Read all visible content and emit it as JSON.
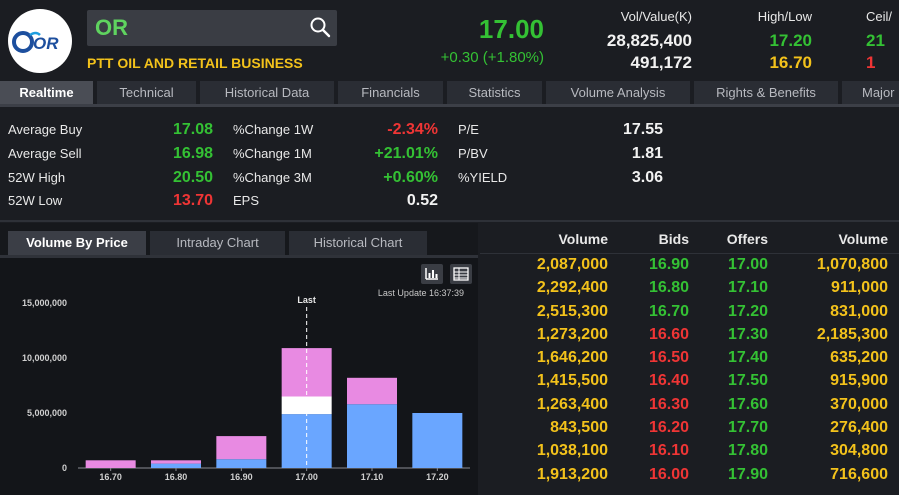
{
  "header": {
    "logo_text": "OR",
    "search_value": "OR",
    "company_name": "PTT OIL AND RETAIL BUSINESS",
    "last_price": "17.00",
    "price_change": "+0.30 (+1.80%)",
    "vol_value": {
      "label": "Vol/Value(K)",
      "v1": "28,825,400",
      "v2": "491,172"
    },
    "high_low": {
      "label": "High/Low",
      "v1": "17.20",
      "v2": "16.70"
    },
    "ceil_floor": {
      "label": "Ceil/",
      "v1": "21",
      "v2": "1"
    }
  },
  "tabs": [
    {
      "label": "Realtime"
    },
    {
      "label": "Technical"
    },
    {
      "label": "Historical Data"
    },
    {
      "label": "Financials"
    },
    {
      "label": "Statistics"
    },
    {
      "label": "Volume Analysis"
    },
    {
      "label": "Rights & Benefits"
    },
    {
      "label": "Major"
    }
  ],
  "stats": {
    "average_buy": {
      "label": "Average Buy",
      "value": "17.08"
    },
    "average_sell": {
      "label": "Average Sell",
      "value": "16.98"
    },
    "high_52w": {
      "label": "52W High",
      "value": "20.50"
    },
    "low_52w": {
      "label": "52W Low",
      "value": "13.70"
    },
    "change_1w": {
      "label": "%Change 1W",
      "value": "-2.34%"
    },
    "change_1m": {
      "label": "%Change 1M",
      "value": "+21.01%"
    },
    "change_3m": {
      "label": "%Change 3M",
      "value": "+0.60%"
    },
    "eps": {
      "label": "EPS",
      "value": "0.52"
    },
    "pe": {
      "label": "P/E",
      "value": "17.55"
    },
    "pbv": {
      "label": "P/BV",
      "value": "1.81"
    },
    "yield": {
      "label": "%YIELD",
      "value": "3.06"
    }
  },
  "chart_tabs": [
    {
      "label": "Volume By Price"
    },
    {
      "label": "Intraday Chart"
    },
    {
      "label": "Historical Chart"
    }
  ],
  "chart_tools": {
    "bar_icon": "bar-chart-icon",
    "table_icon": "table-icon"
  },
  "last_update": "Last Update 16:37:39",
  "chart_data": {
    "type": "bar",
    "stacked": true,
    "categories": [
      "16.70",
      "16.80",
      "16.90",
      "17.00",
      "17.10",
      "17.20"
    ],
    "series": [
      {
        "name": "",
        "color": "#6aa6ff",
        "values": [
          0,
          400000,
          800000,
          4900000,
          5800000,
          5000000
        ]
      },
      {
        "name": "",
        "color": "#ffffff",
        "values": [
          0,
          0,
          0,
          1600000,
          0,
          0
        ]
      },
      {
        "name": "",
        "color": "#e88ae2",
        "values": [
          700000,
          300000,
          2100000,
          4400000,
          2400000,
          0
        ]
      }
    ],
    "ylim": [
      0,
      15000000
    ],
    "yticks": [
      "0",
      "5,000,000",
      "10,000,000",
      "15,000,000"
    ],
    "ytick_values": [
      0,
      5000000,
      10000000,
      15000000
    ],
    "annotation": "Last",
    "annotation_category": "17.00"
  },
  "orderbook": {
    "headers": {
      "bid_volume": "Volume",
      "bids": "Bids",
      "offers": "Offers",
      "offer_volume": "Volume"
    },
    "rows": [
      {
        "bid_volume": "2,087,000",
        "bid": "16.90",
        "bid_color": "green",
        "offer": "17.00",
        "offer_color": "green",
        "offer_volume": "1,070,800"
      },
      {
        "bid_volume": "2,292,400",
        "bid": "16.80",
        "bid_color": "green",
        "offer": "17.10",
        "offer_color": "green",
        "offer_volume": "911,000"
      },
      {
        "bid_volume": "2,515,300",
        "bid": "16.70",
        "bid_color": "green",
        "offer": "17.20",
        "offer_color": "green",
        "offer_volume": "831,000"
      },
      {
        "bid_volume": "1,273,200",
        "bid": "16.60",
        "bid_color": "red",
        "offer": "17.30",
        "offer_color": "green",
        "offer_volume": "2,185,300"
      },
      {
        "bid_volume": "1,646,200",
        "bid": "16.50",
        "bid_color": "red",
        "offer": "17.40",
        "offer_color": "green",
        "offer_volume": "635,200"
      },
      {
        "bid_volume": "1,415,500",
        "bid": "16.40",
        "bid_color": "red",
        "offer": "17.50",
        "offer_color": "green",
        "offer_volume": "915,900"
      },
      {
        "bid_volume": "1,263,400",
        "bid": "16.30",
        "bid_color": "red",
        "offer": "17.60",
        "offer_color": "green",
        "offer_volume": "370,000"
      },
      {
        "bid_volume": "843,500",
        "bid": "16.20",
        "bid_color": "red",
        "offer": "17.70",
        "offer_color": "green",
        "offer_volume": "276,400"
      },
      {
        "bid_volume": "1,038,100",
        "bid": "16.10",
        "bid_color": "red",
        "offer": "17.80",
        "offer_color": "green",
        "offer_volume": "304,800"
      },
      {
        "bid_volume": "1,913,200",
        "bid": "16.00",
        "bid_color": "red",
        "offer": "17.90",
        "offer_color": "green",
        "offer_volume": "716,600"
      }
    ]
  },
  "colors": {
    "up": "#34c134",
    "down": "#ef3535",
    "volume": "#f3c21b",
    "brand_blue": "#1d4f9e"
  }
}
